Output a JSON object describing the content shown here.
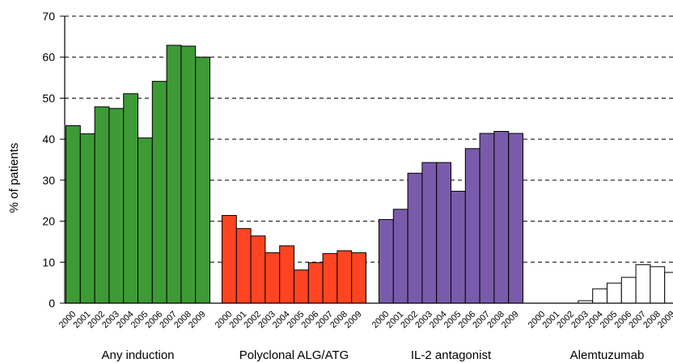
{
  "chart_data": {
    "type": "bar",
    "ylabel": "% of patients",
    "ylim": [
      0,
      70
    ],
    "yticks": [
      0,
      10,
      20,
      30,
      40,
      50,
      60,
      70
    ],
    "grid": "horizontal dashed",
    "categories": [
      "2000",
      "2001",
      "2002",
      "2003",
      "2004",
      "2005",
      "2006",
      "2007",
      "2008",
      "2009"
    ],
    "groups": [
      {
        "name": "Any induction",
        "color": "#3d9a35",
        "values": [
          43.3,
          41.3,
          47.9,
          47.5,
          51.1,
          40.3,
          54.1,
          62.9,
          62.7,
          60.0
        ]
      },
      {
        "name": "Polyclonal ALG/ATG",
        "color": "#ff4422",
        "values": [
          21.4,
          18.2,
          16.4,
          12.3,
          14.0,
          8.1,
          9.9,
          12.1,
          12.8,
          12.3
        ]
      },
      {
        "name": "IL-2 antagonist",
        "color": "#7a5bab",
        "values": [
          20.4,
          22.9,
          31.7,
          34.3,
          34.3,
          27.3,
          37.7,
          41.4,
          41.9,
          41.4
        ]
      },
      {
        "name": "Alemtuzumab",
        "color": "#ffffff",
        "values": [
          0,
          0,
          0,
          0.6,
          3.5,
          4.9,
          6.3,
          9.4,
          8.9,
          7.5
        ]
      }
    ]
  }
}
